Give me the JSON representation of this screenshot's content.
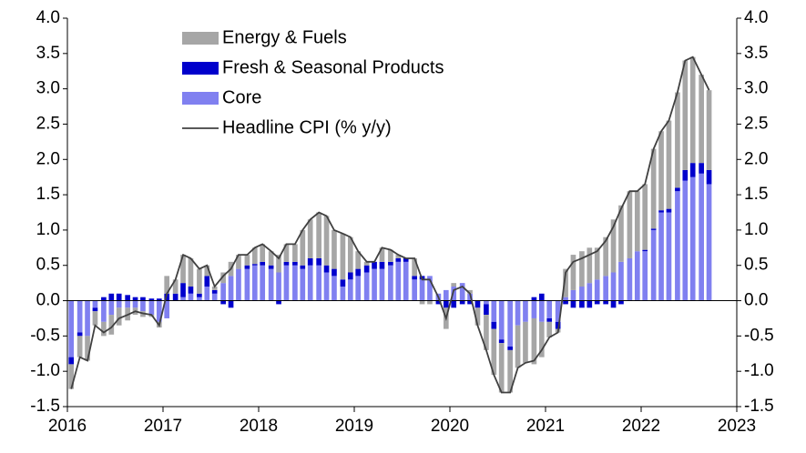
{
  "chart_data": {
    "type": "bar",
    "x": [
      2016.04,
      2016.13,
      2016.21,
      2016.29,
      2016.38,
      2016.46,
      2016.54,
      2016.63,
      2016.71,
      2016.79,
      2016.88,
      2016.96,
      2017.04,
      2017.13,
      2017.21,
      2017.29,
      2017.38,
      2017.46,
      2017.54,
      2017.63,
      2017.71,
      2017.79,
      2017.88,
      2017.96,
      2018.04,
      2018.13,
      2018.21,
      2018.29,
      2018.38,
      2018.46,
      2018.54,
      2018.63,
      2018.71,
      2018.79,
      2018.88,
      2018.96,
      2019.04,
      2019.13,
      2019.21,
      2019.29,
      2019.38,
      2019.46,
      2019.54,
      2019.63,
      2019.71,
      2019.79,
      2019.88,
      2019.96,
      2020.04,
      2020.13,
      2020.21,
      2020.29,
      2020.38,
      2020.46,
      2020.54,
      2020.63,
      2020.71,
      2020.79,
      2020.88,
      2020.96,
      2021.04,
      2021.13,
      2021.21,
      2021.29,
      2021.38,
      2021.46,
      2021.54,
      2021.63,
      2021.71,
      2021.79,
      2021.88,
      2021.96,
      2022.04,
      2022.13,
      2022.21,
      2022.29,
      2022.38,
      2022.46,
      2022.54,
      2022.63,
      2022.71
    ],
    "series": [
      {
        "name": "Energy & Fuels",
        "color": "#a6a6a6",
        "values": [
          -0.35,
          -0.3,
          -0.35,
          -0.2,
          -0.2,
          -0.28,
          -0.25,
          -0.18,
          -0.1,
          -0.08,
          -0.03,
          -0.08,
          0.25,
          0.2,
          0.4,
          0.4,
          0.35,
          0.15,
          0.05,
          0.15,
          0.2,
          0.2,
          0.15,
          0.23,
          0.25,
          0.2,
          0.25,
          0.25,
          0.25,
          0.5,
          0.55,
          0.65,
          0.7,
          0.55,
          0.65,
          0.5,
          0.25,
          0.05,
          0.0,
          0.2,
          0.17,
          0.05,
          0.0,
          0.25,
          -0.05,
          -0.05,
          0.0,
          -0.3,
          0.05,
          0.0,
          0.05,
          -0.25,
          -0.5,
          -0.65,
          -0.7,
          -0.6,
          -0.6,
          -0.58,
          -0.65,
          -0.5,
          -0.22,
          -0.05,
          0.4,
          0.5,
          0.5,
          0.5,
          0.45,
          0.55,
          0.75,
          0.8,
          0.95,
          0.85,
          0.93,
          1.13,
          1.12,
          1.25,
          1.35,
          1.55,
          1.5,
          1.25,
          1.13
        ]
      },
      {
        "name": "Fresh & Seasonal Products",
        "color": "#0000cc",
        "values": [
          -0.1,
          -0.05,
          0,
          -0.05,
          0.05,
          0.1,
          0.1,
          0.08,
          0.05,
          0.05,
          0.03,
          0.03,
          0.1,
          0.1,
          0.2,
          0.1,
          0.05,
          0.15,
          0.05,
          -0.05,
          -0.1,
          0.0,
          0.05,
          0.02,
          0.05,
          0.05,
          -0.05,
          0.05,
          0.05,
          0.05,
          0.1,
          0.1,
          0.1,
          0.1,
          0.1,
          0.1,
          0.1,
          0.1,
          0.1,
          0.1,
          0.05,
          0.05,
          0.05,
          0.05,
          0.05,
          0.0,
          -0.05,
          -0.1,
          -0.1,
          -0.05,
          -0.05,
          -0.1,
          -0.15,
          -0.1,
          -0.05,
          -0.05,
          0.0,
          0.0,
          0.05,
          0.1,
          -0.05,
          -0.1,
          -0.05,
          -0.1,
          -0.1,
          -0.1,
          -0.05,
          -0.05,
          -0.1,
          -0.05,
          0.0,
          0.0,
          0.02,
          0.02,
          0.03,
          0.05,
          0.05,
          0.15,
          0.2,
          0.15,
          0.2
        ]
      },
      {
        "name": "Core",
        "color": "#8080f0",
        "values": [
          -0.8,
          -0.45,
          -0.5,
          -0.1,
          -0.3,
          -0.2,
          -0.1,
          -0.1,
          -0.1,
          -0.15,
          -0.2,
          -0.3,
          -0.25,
          0.0,
          0.05,
          0.1,
          0.05,
          0.2,
          0.1,
          0.25,
          0.35,
          0.45,
          0.45,
          0.5,
          0.5,
          0.45,
          0.4,
          0.5,
          0.5,
          0.45,
          0.5,
          0.5,
          0.4,
          0.35,
          0.2,
          0.3,
          0.35,
          0.4,
          0.45,
          0.45,
          0.5,
          0.55,
          0.55,
          0.3,
          0.3,
          0.35,
          0.1,
          0.15,
          0.2,
          0.25,
          0.1,
          0.0,
          -0.05,
          -0.3,
          -0.55,
          -0.65,
          -0.35,
          -0.3,
          -0.25,
          -0.3,
          -0.25,
          -0.3,
          0.05,
          0.15,
          0.2,
          0.25,
          0.3,
          0.35,
          0.4,
          0.55,
          0.6,
          0.7,
          0.7,
          1.0,
          1.25,
          1.25,
          1.55,
          1.7,
          1.75,
          1.8,
          1.65
        ]
      },
      {
        "name": "Headline CPI (% y/y)",
        "color": "#404040",
        "type": "line",
        "values": [
          -1.25,
          -0.8,
          -0.85,
          -0.35,
          -0.45,
          -0.38,
          -0.25,
          -0.2,
          -0.15,
          -0.18,
          -0.2,
          -0.35,
          0.1,
          0.3,
          0.65,
          0.6,
          0.45,
          0.5,
          0.2,
          0.35,
          0.45,
          0.65,
          0.65,
          0.75,
          0.8,
          0.7,
          0.6,
          0.8,
          0.8,
          1.0,
          1.15,
          1.25,
          1.2,
          1.0,
          0.95,
          0.9,
          0.7,
          0.55,
          0.55,
          0.75,
          0.72,
          0.65,
          0.6,
          0.6,
          0.3,
          0.3,
          0.05,
          -0.25,
          0.15,
          0.2,
          0.1,
          -0.35,
          -0.7,
          -1.05,
          -1.3,
          -1.3,
          -0.95,
          -0.88,
          -0.85,
          -0.7,
          -0.52,
          -0.45,
          0.4,
          0.55,
          0.6,
          0.65,
          0.7,
          0.85,
          1.05,
          1.3,
          1.55,
          1.55,
          1.65,
          2.15,
          2.4,
          2.55,
          2.95,
          3.4,
          3.45,
          3.2,
          2.98
        ]
      }
    ],
    "xlim": [
      2016,
      2023
    ],
    "xticks": [
      2016,
      2017,
      2018,
      2019,
      2020,
      2021,
      2022,
      2023
    ],
    "ylim": [
      -1.5,
      4
    ],
    "yticks": [
      {
        "value": 4,
        "label": "4.0"
      },
      3.5,
      {
        "value": 3,
        "label": "3.0"
      },
      2.5,
      {
        "value": 2,
        "label": "2.0"
      },
      1.5,
      {
        "value": 1,
        "label": "1.0"
      },
      0.5,
      {
        "value": 0,
        "label": "0.0"
      },
      -0.5,
      {
        "value": -1,
        "label": "-1.0"
      },
      -1.5
    ],
    "y2lim": [
      -1.5,
      4
    ],
    "y2ticks": [
      {
        "value": 4,
        "label": "4.0"
      },
      3.5,
      {
        "value": 3,
        "label": "3.0"
      },
      2.5,
      {
        "value": 2,
        "label": "2.0"
      },
      1.5,
      {
        "value": 1,
        "label": "1.0"
      },
      0.5,
      {
        "value": 0,
        "label": "0.0"
      },
      -0.5,
      {
        "value": -1,
        "label": "-1.0"
      },
      -1.5
    ],
    "legend": "top-left"
  }
}
